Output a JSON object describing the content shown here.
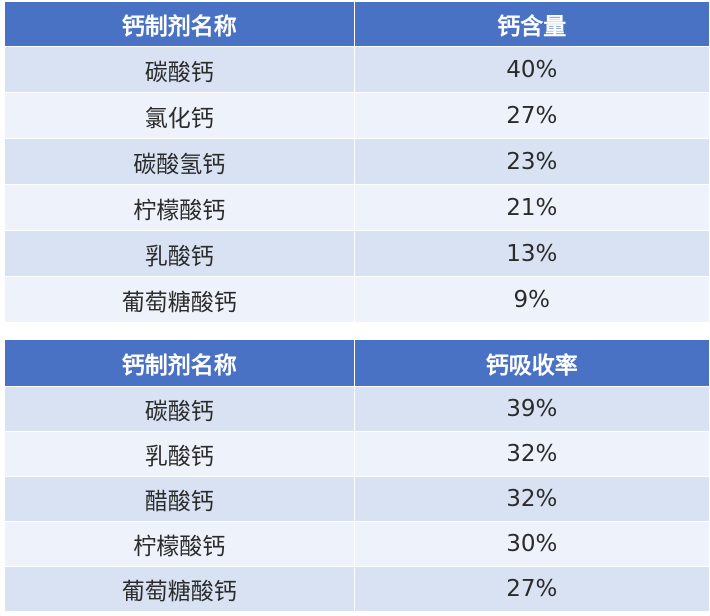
{
  "table1": {
    "headers": [
      "钙制剂名称",
      "钙含量"
    ],
    "rows": [
      [
        "碳酸钙",
        "40%"
      ],
      [
        "氯化钙",
        "27%"
      ],
      [
        "碳酸氢钙",
        "23%"
      ],
      [
        "柠檬酸钙",
        "21%"
      ],
      [
        "乳酸钙",
        "13%"
      ],
      [
        "葡萄糖酸钙",
        "9%"
      ]
    ]
  },
  "table2": {
    "headers": [
      "钙制剂名称",
      "钙吸收率"
    ],
    "rows": [
      [
        "碳酸钙",
        "39%"
      ],
      [
        "乳酸钙",
        "32%"
      ],
      [
        "醋酸钙",
        "32%"
      ],
      [
        "柠檬酸钙",
        "30%"
      ],
      [
        "葡萄糖酸钙",
        "27%"
      ]
    ]
  },
  "colors": {
    "header_bg": "#4a72c4",
    "row_odd": "#d8e2f3",
    "row_even": "#eef2fa"
  }
}
